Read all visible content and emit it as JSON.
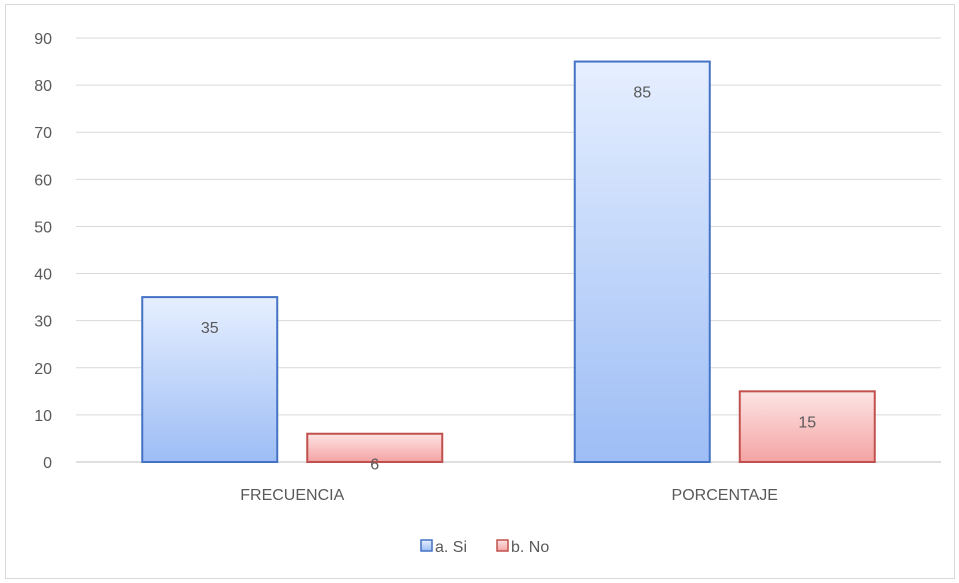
{
  "chart_data": {
    "type": "bar",
    "categories": [
      "FRECUENCIA",
      "PORCENTAJE"
    ],
    "series": [
      {
        "name": "a. Si",
        "values": [
          35,
          85
        ],
        "color": "#4472C4"
      },
      {
        "name": "b. No",
        "values": [
          6,
          15
        ],
        "color": "#C0504D"
      }
    ],
    "ylim": [
      0,
      90
    ],
    "yticks": [
      0,
      10,
      20,
      30,
      40,
      50,
      60,
      70,
      80,
      90
    ],
    "grid": true,
    "legend_position": "bottom",
    "data_labels": true
  }
}
